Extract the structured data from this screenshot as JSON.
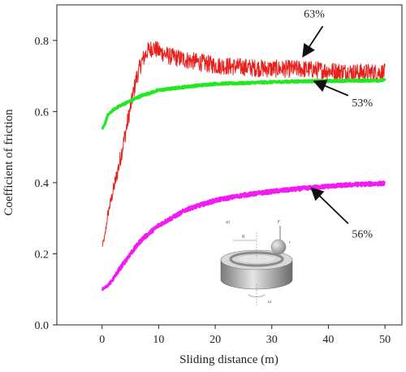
{
  "chart_data": {
    "type": "line",
    "title": "",
    "xlabel": "Sliding distance (m)",
    "ylabel": "Coefficient of friction",
    "xlim": [
      -8,
      53
    ],
    "ylim": [
      0,
      0.9
    ],
    "x_ticks": [
      0,
      10,
      20,
      30,
      40,
      50
    ],
    "x_tick_labels": [
      "0",
      "10",
      "20",
      "30",
      "40",
      "50"
    ],
    "y_ticks": [
      0,
      0.2,
      0.4,
      0.6,
      0.8
    ],
    "y_tick_labels": [
      "0.0",
      "0.2",
      "0.4",
      "0.6",
      "0.8"
    ],
    "grid": false,
    "series": [
      {
        "name": "63%",
        "color": "#e8201c",
        "noise": 0.025,
        "x": [
          0,
          0.5,
          1,
          2,
          3,
          4,
          5,
          6,
          7,
          8,
          9,
          10,
          12,
          15,
          20,
          25,
          30,
          35,
          40,
          45,
          50
        ],
        "y": [
          0.22,
          0.25,
          0.31,
          0.38,
          0.45,
          0.53,
          0.61,
          0.69,
          0.74,
          0.77,
          0.78,
          0.77,
          0.755,
          0.745,
          0.73,
          0.725,
          0.72,
          0.72,
          0.715,
          0.71,
          0.71
        ]
      },
      {
        "name": "53%",
        "color": "#22e822",
        "noise": 0.003,
        "x": [
          0,
          0.5,
          1,
          2,
          3,
          5,
          7,
          10,
          15,
          20,
          25,
          30,
          35,
          40,
          45,
          50
        ],
        "y": [
          0.55,
          0.565,
          0.59,
          0.605,
          0.615,
          0.63,
          0.645,
          0.66,
          0.67,
          0.678,
          0.68,
          0.683,
          0.685,
          0.686,
          0.687,
          0.688
        ]
      },
      {
        "name": "56%",
        "color": "#f21bf2",
        "noise": 0.005,
        "x": [
          0,
          0.5,
          1,
          2,
          3,
          5,
          7,
          10,
          15,
          20,
          25,
          30,
          35,
          40,
          45,
          50
        ],
        "y": [
          0.1,
          0.105,
          0.11,
          0.13,
          0.155,
          0.2,
          0.24,
          0.28,
          0.325,
          0.35,
          0.365,
          0.375,
          0.383,
          0.39,
          0.395,
          0.398
        ]
      }
    ],
    "annotations": [
      {
        "label": "63%",
        "text_at": [
          37.5,
          0.865
        ],
        "arrow_from": [
          39,
          0.84
        ],
        "arrow_to": [
          35.5,
          0.755
        ]
      },
      {
        "label": "53%",
        "text_at": [
          46,
          0.615
        ],
        "arrow_from": [
          43.5,
          0.645
        ],
        "arrow_to": [
          37.5,
          0.685
        ]
      },
      {
        "label": "56%",
        "text_at": [
          46,
          0.245
        ],
        "arrow_from": [
          43.5,
          0.285
        ],
        "arrow_to": [
          37,
          0.385
        ]
      }
    ],
    "inset_labels": [
      "a)",
      "R",
      "F",
      "r",
      "ω"
    ]
  }
}
